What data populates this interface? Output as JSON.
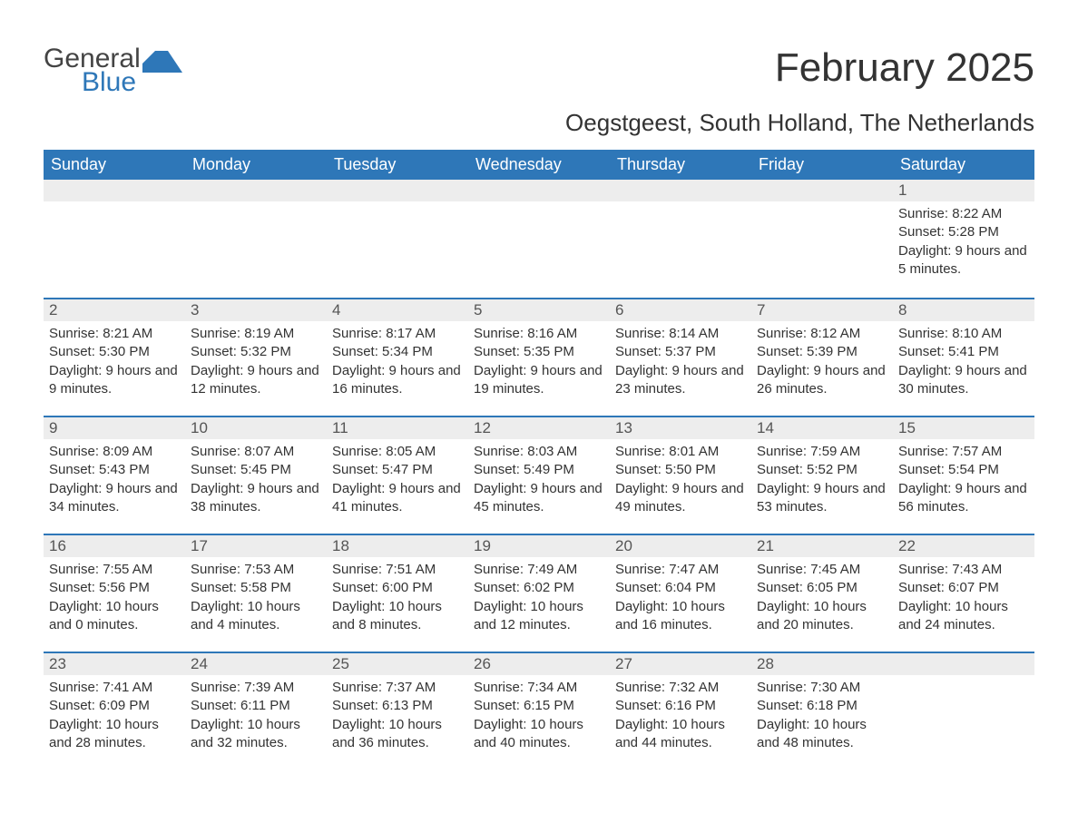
{
  "brand": {
    "name1": "General",
    "name2": "Blue",
    "accent_color": "#2e77b8",
    "text_color": "#444444"
  },
  "title": "February 2025",
  "location": "Oegstgeest, South Holland, The Netherlands",
  "colors": {
    "header_bg": "#2e77b8",
    "header_text": "#ffffff",
    "daynum_bg": "#ededed",
    "week_border": "#2e77b8",
    "body_text": "#333333"
  },
  "fonts": {
    "title_size_pt": 33,
    "location_size_pt": 20,
    "weekday_size_pt": 14,
    "body_size_pt": 11
  },
  "weekdays": [
    "Sunday",
    "Monday",
    "Tuesday",
    "Wednesday",
    "Thursday",
    "Friday",
    "Saturday"
  ],
  "weeks": [
    [
      {
        "n": "",
        "sunrise": "",
        "sunset": "",
        "daylight": ""
      },
      {
        "n": "",
        "sunrise": "",
        "sunset": "",
        "daylight": ""
      },
      {
        "n": "",
        "sunrise": "",
        "sunset": "",
        "daylight": ""
      },
      {
        "n": "",
        "sunrise": "",
        "sunset": "",
        "daylight": ""
      },
      {
        "n": "",
        "sunrise": "",
        "sunset": "",
        "daylight": ""
      },
      {
        "n": "",
        "sunrise": "",
        "sunset": "",
        "daylight": ""
      },
      {
        "n": "1",
        "sunrise": "Sunrise: 8:22 AM",
        "sunset": "Sunset: 5:28 PM",
        "daylight": "Daylight: 9 hours and 5 minutes."
      }
    ],
    [
      {
        "n": "2",
        "sunrise": "Sunrise: 8:21 AM",
        "sunset": "Sunset: 5:30 PM",
        "daylight": "Daylight: 9 hours and 9 minutes."
      },
      {
        "n": "3",
        "sunrise": "Sunrise: 8:19 AM",
        "sunset": "Sunset: 5:32 PM",
        "daylight": "Daylight: 9 hours and 12 minutes."
      },
      {
        "n": "4",
        "sunrise": "Sunrise: 8:17 AM",
        "sunset": "Sunset: 5:34 PM",
        "daylight": "Daylight: 9 hours and 16 minutes."
      },
      {
        "n": "5",
        "sunrise": "Sunrise: 8:16 AM",
        "sunset": "Sunset: 5:35 PM",
        "daylight": "Daylight: 9 hours and 19 minutes."
      },
      {
        "n": "6",
        "sunrise": "Sunrise: 8:14 AM",
        "sunset": "Sunset: 5:37 PM",
        "daylight": "Daylight: 9 hours and 23 minutes."
      },
      {
        "n": "7",
        "sunrise": "Sunrise: 8:12 AM",
        "sunset": "Sunset: 5:39 PM",
        "daylight": "Daylight: 9 hours and 26 minutes."
      },
      {
        "n": "8",
        "sunrise": "Sunrise: 8:10 AM",
        "sunset": "Sunset: 5:41 PM",
        "daylight": "Daylight: 9 hours and 30 minutes."
      }
    ],
    [
      {
        "n": "9",
        "sunrise": "Sunrise: 8:09 AM",
        "sunset": "Sunset: 5:43 PM",
        "daylight": "Daylight: 9 hours and 34 minutes."
      },
      {
        "n": "10",
        "sunrise": "Sunrise: 8:07 AM",
        "sunset": "Sunset: 5:45 PM",
        "daylight": "Daylight: 9 hours and 38 minutes."
      },
      {
        "n": "11",
        "sunrise": "Sunrise: 8:05 AM",
        "sunset": "Sunset: 5:47 PM",
        "daylight": "Daylight: 9 hours and 41 minutes."
      },
      {
        "n": "12",
        "sunrise": "Sunrise: 8:03 AM",
        "sunset": "Sunset: 5:49 PM",
        "daylight": "Daylight: 9 hours and 45 minutes."
      },
      {
        "n": "13",
        "sunrise": "Sunrise: 8:01 AM",
        "sunset": "Sunset: 5:50 PM",
        "daylight": "Daylight: 9 hours and 49 minutes."
      },
      {
        "n": "14",
        "sunrise": "Sunrise: 7:59 AM",
        "sunset": "Sunset: 5:52 PM",
        "daylight": "Daylight: 9 hours and 53 minutes."
      },
      {
        "n": "15",
        "sunrise": "Sunrise: 7:57 AM",
        "sunset": "Sunset: 5:54 PM",
        "daylight": "Daylight: 9 hours and 56 minutes."
      }
    ],
    [
      {
        "n": "16",
        "sunrise": "Sunrise: 7:55 AM",
        "sunset": "Sunset: 5:56 PM",
        "daylight": "Daylight: 10 hours and 0 minutes."
      },
      {
        "n": "17",
        "sunrise": "Sunrise: 7:53 AM",
        "sunset": "Sunset: 5:58 PM",
        "daylight": "Daylight: 10 hours and 4 minutes."
      },
      {
        "n": "18",
        "sunrise": "Sunrise: 7:51 AM",
        "sunset": "Sunset: 6:00 PM",
        "daylight": "Daylight: 10 hours and 8 minutes."
      },
      {
        "n": "19",
        "sunrise": "Sunrise: 7:49 AM",
        "sunset": "Sunset: 6:02 PM",
        "daylight": "Daylight: 10 hours and 12 minutes."
      },
      {
        "n": "20",
        "sunrise": "Sunrise: 7:47 AM",
        "sunset": "Sunset: 6:04 PM",
        "daylight": "Daylight: 10 hours and 16 minutes."
      },
      {
        "n": "21",
        "sunrise": "Sunrise: 7:45 AM",
        "sunset": "Sunset: 6:05 PM",
        "daylight": "Daylight: 10 hours and 20 minutes."
      },
      {
        "n": "22",
        "sunrise": "Sunrise: 7:43 AM",
        "sunset": "Sunset: 6:07 PM",
        "daylight": "Daylight: 10 hours and 24 minutes."
      }
    ],
    [
      {
        "n": "23",
        "sunrise": "Sunrise: 7:41 AM",
        "sunset": "Sunset: 6:09 PM",
        "daylight": "Daylight: 10 hours and 28 minutes."
      },
      {
        "n": "24",
        "sunrise": "Sunrise: 7:39 AM",
        "sunset": "Sunset: 6:11 PM",
        "daylight": "Daylight: 10 hours and 32 minutes."
      },
      {
        "n": "25",
        "sunrise": "Sunrise: 7:37 AM",
        "sunset": "Sunset: 6:13 PM",
        "daylight": "Daylight: 10 hours and 36 minutes."
      },
      {
        "n": "26",
        "sunrise": "Sunrise: 7:34 AM",
        "sunset": "Sunset: 6:15 PM",
        "daylight": "Daylight: 10 hours and 40 minutes."
      },
      {
        "n": "27",
        "sunrise": "Sunrise: 7:32 AM",
        "sunset": "Sunset: 6:16 PM",
        "daylight": "Daylight: 10 hours and 44 minutes."
      },
      {
        "n": "28",
        "sunrise": "Sunrise: 7:30 AM",
        "sunset": "Sunset: 6:18 PM",
        "daylight": "Daylight: 10 hours and 48 minutes."
      },
      {
        "n": "",
        "sunrise": "",
        "sunset": "",
        "daylight": ""
      }
    ]
  ]
}
